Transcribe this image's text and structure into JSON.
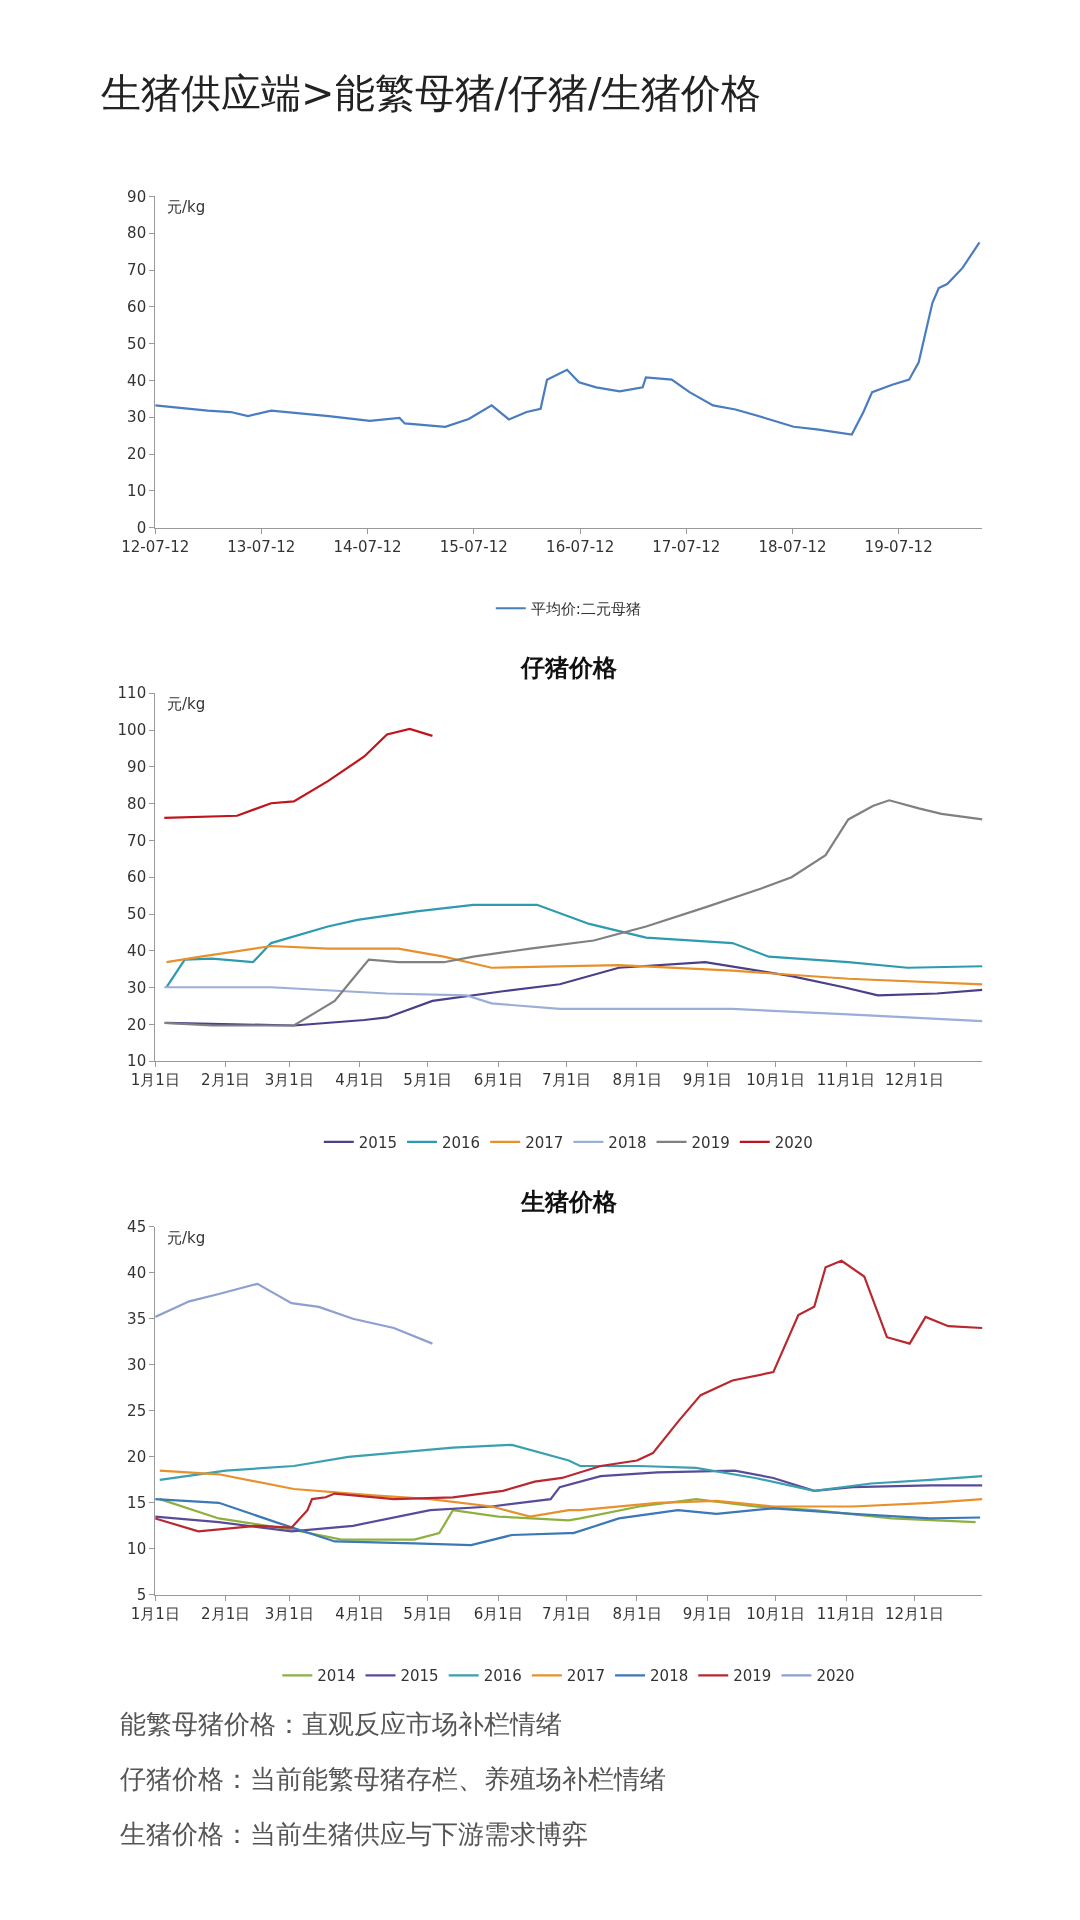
{
  "chart_data": [
    {
      "type": "other",
      "title": "生猪供应端>能繁母猪/仔猪/生猪价格",
      "annotations": [
        "能繁母猪价格：直观反应市场补栏情绪",
        "仔猪价格：当前能繁母猪存栏、养殖场补栏情绪",
        "生猪价格：当前生猪供应与下游需求博弈"
      ]
    },
    {
      "type": "line",
      "ylabel": "元/kg",
      "legend": "bottom",
      "xlim": [
        "2012-07-12",
        "2020-04-25"
      ],
      "ylim": [
        0,
        90
      ],
      "yticks": [
        0,
        10,
        20,
        30,
        40,
        50,
        60,
        70,
        80,
        90
      ],
      "xticks": [
        {
          "value": "2012-07-12",
          "label": "12-07-12"
        },
        {
          "value": "2013-07-12",
          "label": "13-07-12"
        },
        {
          "value": "2014-07-12",
          "label": "14-07-12"
        },
        {
          "value": "2015-07-12",
          "label": "15-07-12"
        },
        {
          "value": "2016-07-12",
          "label": "16-07-12"
        },
        {
          "value": "2017-07-12",
          "label": "17-07-12"
        },
        {
          "value": "2018-07-12",
          "label": "18-07-12"
        },
        {
          "value": "2019-07-12",
          "label": "19-07-12"
        }
      ],
      "series": [
        {
          "name": "平均价:二元母猪",
          "color": "#4a7cc0",
          "x": [
            "2012-07-12",
            "2013-01-08",
            "2013-03-29",
            "2013-05-27",
            "2013-08-15",
            "2014-03-01",
            "2014-07-20",
            "2014-10-30",
            "2014-11-17",
            "2015-04-05",
            "2015-06-25",
            "2015-09-12",
            "2015-11-10",
            "2016-01-10",
            "2016-02-27",
            "2016-03-20",
            "2016-05-28",
            "2016-07-08",
            "2016-09-05",
            "2016-11-25",
            "2017-02-12",
            "2017-02-23",
            "2017-05-23",
            "2017-07-23",
            "2017-10-12",
            "2017-12-28",
            "2018-04-08",
            "2018-07-16",
            "2018-10-04",
            "2019-02-01",
            "2019-03-13",
            "2019-04-12",
            "2019-06-20",
            "2019-08-17",
            "2019-09-19",
            "2019-11-05",
            "2019-11-27",
            "2019-12-26",
            "2020-02-16",
            "2020-04-15"
          ],
          "values": [
            33.2,
            31.8,
            31.4,
            30.3,
            31.8,
            30.3,
            29,
            29.8,
            28.3,
            27.4,
            29.5,
            33.2,
            29.4,
            31.4,
            32.3,
            40.2,
            42.9,
            39.5,
            38.1,
            37,
            38.1,
            40.8,
            40.2,
            36.8,
            33.2,
            32.1,
            29.8,
            27.4,
            26.7,
            25.3,
            31.4,
            36.8,
            38.8,
            40.2,
            44.9,
            61,
            65.1,
            66.2,
            70.5,
            77.5
          ]
        }
      ]
    },
    {
      "type": "line",
      "title": "仔猪价格",
      "ylabel": "元/kg",
      "legend": "bottom",
      "xlim": [
        "--01-01",
        "--12-31"
      ],
      "ylim": [
        10,
        110
      ],
      "yticks": [
        10,
        20,
        30,
        40,
        50,
        60,
        70,
        80,
        90,
        100,
        110
      ],
      "xticks": [
        {
          "value": "--01-01",
          "label": "1月1日"
        },
        {
          "value": "--02-01",
          "label": "2月1日"
        },
        {
          "value": "--03-01",
          "label": "3月1日"
        },
        {
          "value": "--04-01",
          "label": "4月1日"
        },
        {
          "value": "--05-01",
          "label": "5月1日"
        },
        {
          "value": "--06-01",
          "label": "6月1日"
        },
        {
          "value": "--07-01",
          "label": "7月1日"
        },
        {
          "value": "--08-01",
          "label": "8月1日"
        },
        {
          "value": "--09-01",
          "label": "9月1日"
        },
        {
          "value": "--10-01",
          "label": "10月1日"
        },
        {
          "value": "--11-01",
          "label": "11月1日"
        },
        {
          "value": "--12-01",
          "label": "12月1日"
        }
      ],
      "series": [
        {
          "name": "2015",
          "color": "#4b3f8a",
          "x": [
            "--01-06",
            "--03-03",
            "--04-03",
            "--04-13",
            "--05-03",
            "--06-03",
            "--06-28",
            "--07-24",
            "--08-31",
            "--10-08",
            "--10-31",
            "--11-15",
            "--12-11",
            "--12-31"
          ],
          "values": [
            20.4,
            19.7,
            21.2,
            21.9,
            26.4,
            29,
            30.9,
            35.4,
            36.9,
            33.1,
            30.1,
            27.9,
            28.4,
            29.4
          ]
        },
        {
          "name": "2016",
          "color": "#2e9ab0",
          "x": [
            "--01-06",
            "--01-14",
            "--01-26",
            "--02-13",
            "--02-21",
            "--03-18",
            "--03-31",
            "--04-26",
            "--05-21",
            "--06-18",
            "--07-11",
            "--08-05",
            "--09-12",
            "--09-28",
            "--11-02",
            "--11-28",
            "--12-31"
          ],
          "values": [
            30.1,
            37.6,
            37.9,
            36.9,
            42.1,
            46.6,
            48.4,
            50.7,
            52.5,
            52.5,
            47.3,
            43.6,
            42.1,
            38.4,
            36.9,
            35.4,
            35.8
          ]
        },
        {
          "name": "2017",
          "color": "#e8902b",
          "x": [
            "--01-06",
            "--01-21",
            "--02-21",
            "--03-18",
            "--04-18",
            "--05-08",
            "--05-29",
            "--07-24",
            "--09-12",
            "--11-02",
            "--12-31"
          ],
          "values": [
            36.9,
            38.4,
            41.3,
            40.6,
            40.6,
            38.4,
            35.4,
            36.1,
            34.6,
            32.4,
            30.9
          ]
        },
        {
          "name": "2018",
          "color": "#9aaed8",
          "x": [
            "--01-05",
            "--02-21",
            "--04-13",
            "--05-18",
            "--05-29",
            "--06-28",
            "--09-12",
            "--11-02",
            "--12-31"
          ],
          "values": [
            30.1,
            30.1,
            28.4,
            27.9,
            25.7,
            24.2,
            24.2,
            22.7,
            20.9
          ]
        },
        {
          "name": "2019",
          "color": "#808080",
          "x": [
            "--01-05",
            "--01-26",
            "--03-03",
            "--03-13",
            "--03-21",
            "--03-29",
            "--04-05",
            "--04-18",
            "--05-08",
            "--05-21",
            "--06-15",
            "--07-13",
            "--08-05",
            "--08-31",
            "--09-25",
            "--10-08",
            "--10-23",
            "--11-02",
            "--11-13",
            "--11-20",
            "--12-03",
            "--12-13",
            "--12-31"
          ],
          "values": [
            20.4,
            19.7,
            19.7,
            23.4,
            26.4,
            32.4,
            37.6,
            36.9,
            36.9,
            38.4,
            40.6,
            42.8,
            46.6,
            51.8,
            57,
            60,
            66,
            75.7,
            79.4,
            80.9,
            78.7,
            77.2,
            75.7
          ]
        },
        {
          "name": "2020",
          "color": "#c0141c",
          "x": [
            "--01-05",
            "--02-06",
            "--02-21",
            "--03-03",
            "--03-18",
            "--04-03",
            "--04-13",
            "--04-23",
            "--05-03"
          ],
          "values": [
            76.1,
            76.7,
            80.1,
            80.6,
            86.1,
            92.8,
            98.8,
            100.3,
            98.4
          ]
        }
      ]
    },
    {
      "type": "line",
      "title": "生猪价格",
      "ylabel": "元/kg",
      "legend": "bottom",
      "xlim": [
        "--01-01",
        "--12-31"
      ],
      "ylim": [
        5,
        45
      ],
      "yticks": [
        5,
        10,
        15,
        20,
        25,
        30,
        35,
        40,
        45
      ],
      "xticks": [
        {
          "value": "--01-01",
          "label": "1月1日"
        },
        {
          "value": "--02-01",
          "label": "2月1日"
        },
        {
          "value": "--03-01",
          "label": "3月1日"
        },
        {
          "value": "--04-01",
          "label": "4月1日"
        },
        {
          "value": "--05-01",
          "label": "5月1日"
        },
        {
          "value": "--06-01",
          "label": "6月1日"
        },
        {
          "value": "--07-01",
          "label": "7月1日"
        },
        {
          "value": "--08-01",
          "label": "8月1日"
        },
        {
          "value": "--09-01",
          "label": "9月1日"
        },
        {
          "value": "--10-01",
          "label": "10月1日"
        },
        {
          "value": "--11-01",
          "label": "11月1日"
        },
        {
          "value": "--12-01",
          "label": "12月1日"
        }
      ],
      "series": [
        {
          "name": "2014",
          "color": "#8db040",
          "x": [
            "--01-03",
            "--01-29",
            "--03-02",
            "--03-24",
            "--04-25",
            "--05-06",
            "--05-12",
            "--06-01",
            "--07-02",
            "--07-07",
            "--08-02",
            "--08-27",
            "--09-22",
            "--10-18",
            "--11-21",
            "--12-28"
          ],
          "values": [
            15.4,
            13.3,
            12.1,
            11,
            11,
            11.7,
            14.2,
            13.5,
            13.1,
            13.3,
            14.6,
            15.4,
            14.6,
            14.2,
            13.3,
            12.9
          ]
        },
        {
          "name": "2015",
          "color": "#5a4a9a",
          "x": [
            "--01-01",
            "--01-29",
            "--03-02",
            "--03-29",
            "--05-02",
            "--05-29",
            "--06-24",
            "--06-28",
            "--07-16",
            "--08-10",
            "--09-13",
            "--09-30",
            "--10-18",
            "--11-04",
            "--12-08",
            "--12-31"
          ],
          "values": [
            13.5,
            12.9,
            11.9,
            12.5,
            14.2,
            14.6,
            15.4,
            16.7,
            17.9,
            18.3,
            18.5,
            17.7,
            16.3,
            16.7,
            16.9,
            16.9
          ]
        },
        {
          "name": "2016",
          "color": "#3aa0b0",
          "x": [
            "--01-03",
            "--02-01",
            "--03-03",
            "--03-27",
            "--05-12",
            "--06-07",
            "--07-02",
            "--07-07",
            "--08-02",
            "--08-27",
            "--09-22",
            "--10-18",
            "--11-12",
            "--12-08",
            "--12-31"
          ],
          "values": [
            17.5,
            18.5,
            19,
            20,
            21,
            21.3,
            19.6,
            19,
            19,
            18.8,
            17.7,
            16.3,
            17.1,
            17.5,
            17.9
          ]
        },
        {
          "name": "2017",
          "color": "#e8902b",
          "x": [
            "--01-03",
            "--01-29",
            "--03-03",
            "--04-07",
            "--05-02",
            "--05-29",
            "--06-15",
            "--07-02",
            "--07-07",
            "--08-10",
            "--09-05",
            "--09-30",
            "--11-04",
            "--12-08",
            "--12-31"
          ],
          "values": [
            18.5,
            18.1,
            16.5,
            15.8,
            15.4,
            14.6,
            13.5,
            14.2,
            14.2,
            15,
            15.2,
            14.6,
            14.6,
            15,
            15.4
          ]
        },
        {
          "name": "2018",
          "color": "#3a78b8",
          "x": [
            "--01-01",
            "--01-29",
            "--02-23",
            "--03-21",
            "--04-25",
            "--05-20",
            "--06-07",
            "--07-02",
            "--07-04",
            "--07-24",
            "--08-19",
            "--09-05",
            "--09-30",
            "--11-04",
            "--12-08",
            "--12-30"
          ],
          "values": [
            15.4,
            15,
            12.9,
            10.8,
            10.6,
            10.4,
            11.5,
            11.7,
            11.7,
            13.3,
            14.2,
            13.8,
            14.4,
            13.8,
            13.3,
            13.4
          ]
        },
        {
          "name": "2019",
          "color": "#b8282e",
          "x": [
            "--01-01",
            "--01-20",
            "--02-15",
            "--03-02",
            "--03-09",
            "--03-11",
            "--03-17",
            "--03-21",
            "--04-16",
            "--05-12",
            "--06-03",
            "--06-17",
            "--06-29",
            "--07-16",
            "--08-01",
            "--08-08",
            "--08-19",
            "--08-29",
            "--09-12",
            "--09-30",
            "--10-11",
            "--10-18",
            "--10-23",
            "--10-30",
            "--11-09",
            "--11-19",
            "--11-29",
            "--12-06",
            "--12-16",
            "--12-31"
          ],
          "values": [
            13.3,
            11.9,
            12.5,
            12.3,
            14.2,
            15.4,
            15.6,
            16,
            15.4,
            15.6,
            16.3,
            17.3,
            17.7,
            19,
            19.6,
            20.4,
            23.8,
            26.7,
            28.3,
            29.2,
            35.4,
            36.3,
            40.6,
            41.3,
            39.6,
            33,
            32.3,
            35.2,
            34.2,
            34
          ]
        },
        {
          "name": "2020",
          "color": "#8fa0d0",
          "x": [
            "--01-01",
            "--01-16",
            "--01-29",
            "--02-15",
            "--03-02",
            "--03-14",
            "--03-29",
            "--04-16",
            "--05-03"
          ],
          "values": [
            35.2,
            36.9,
            37.7,
            38.8,
            36.7,
            36.3,
            35,
            34,
            32.3
          ]
        }
      ]
    }
  ]
}
